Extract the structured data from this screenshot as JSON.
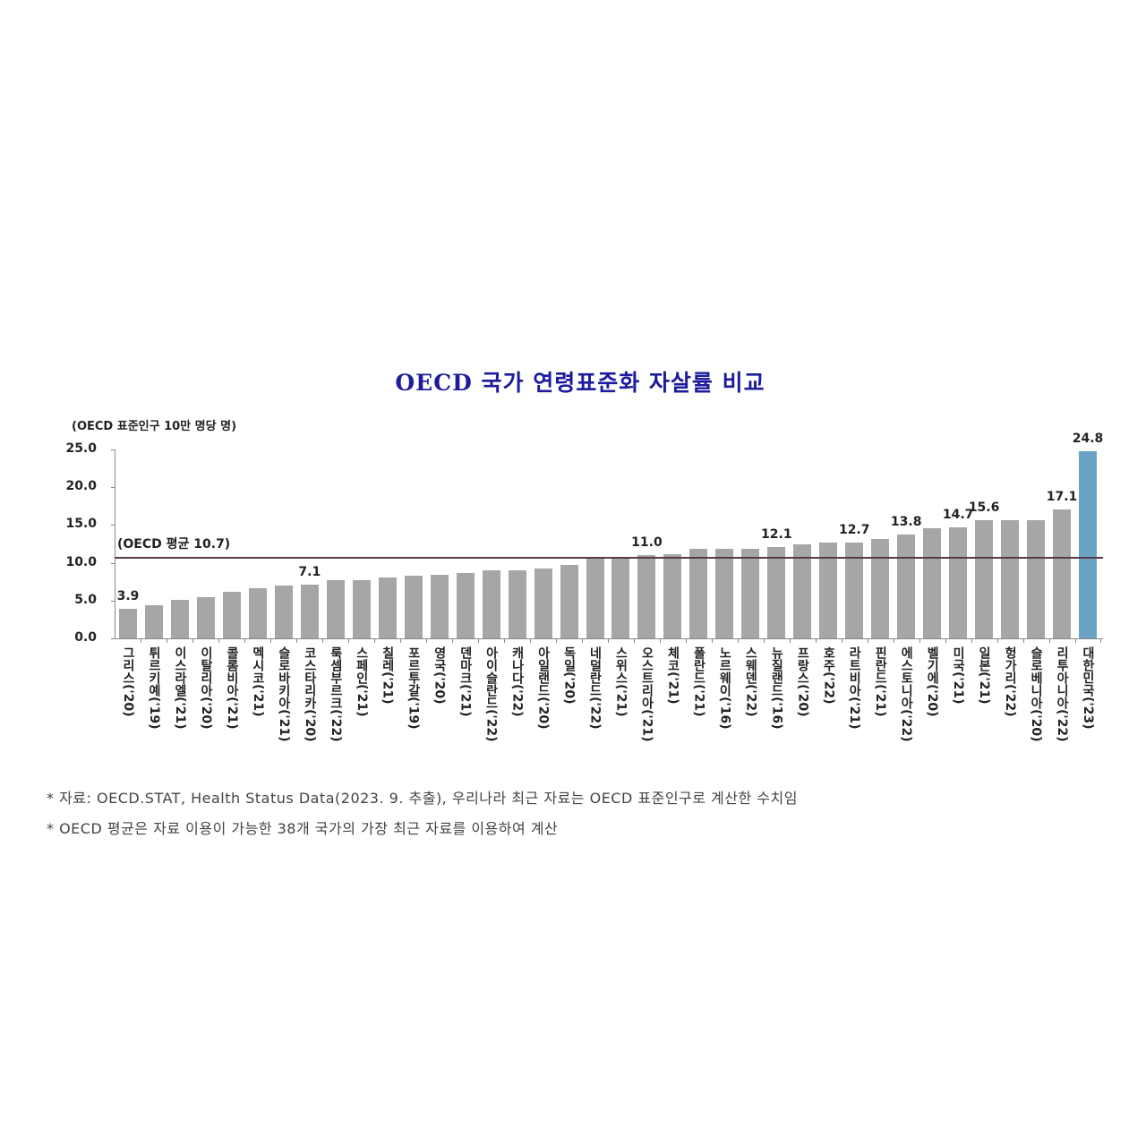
{
  "chart_data": {
    "type": "bar",
    "title": "OECD 국가 연령표준화 자살률 비교",
    "ylabel": "(OECD 표준인구 10만 명당 명)",
    "ylim": [
      0,
      25
    ],
    "yticks": [
      "0.0",
      "5.0",
      "10.0",
      "15.0",
      "20.0",
      "25.0"
    ],
    "grid": false,
    "categories": [
      "그리스('20)",
      "튀르키예('19)",
      "이스라엘('21)",
      "이탈리아('20)",
      "콜롬비아('21)",
      "멕시코('21)",
      "슬로바키아('21)",
      "코스타리카('20)",
      "룩셈부르크('22)",
      "스페인('21)",
      "칠레('21)",
      "포르투갈('19)",
      "영국('20)",
      "덴마크('21)",
      "아이슬란드('22)",
      "캐나다('22)",
      "아일랜드('20)",
      "독일('20)",
      "네덜란드('22)",
      "스위스('21)",
      "오스트리아('21)",
      "체코('21)",
      "폴란드('21)",
      "노르웨이('16)",
      "스웨덴('22)",
      "뉴질랜드('16)",
      "프랑스('20)",
      "호주('22)",
      "라트비아('21)",
      "핀란드('21)",
      "에스토니아('22)",
      "벨기에('20)",
      "미국('21)",
      "일본('21)",
      "헝가리('22)",
      "슬로베니아('20)",
      "리투아니아('22)",
      "대한민국('23)"
    ],
    "values": [
      3.9,
      4.4,
      5.1,
      5.4,
      6.2,
      6.6,
      7.0,
      7.1,
      7.7,
      7.7,
      8.1,
      8.3,
      8.4,
      8.6,
      9.0,
      9.0,
      9.3,
      9.7,
      10.5,
      10.7,
      11.0,
      11.1,
      11.8,
      11.8,
      11.8,
      12.1,
      12.5,
      12.7,
      12.7,
      13.2,
      13.8,
      14.6,
      14.7,
      15.6,
      15.6,
      15.6,
      17.1,
      24.8
    ],
    "data_labels": {
      "0": "3.9",
      "7": "7.1",
      "20": "11.0",
      "25": "12.1",
      "28": "12.7",
      "30": "13.8",
      "32": "14.7",
      "33": "15.6",
      "36": "17.1",
      "37": "24.8"
    },
    "highlight_index": 37,
    "colors": {
      "bar": "#a6a6a6",
      "highlight": "#6aa3c3",
      "average_line": "#5a3a4a",
      "title": "#1c1c9c"
    },
    "reference_line": {
      "value": 10.7,
      "label": "(OECD 평균 10.7)"
    }
  },
  "notes": [
    "* 자료: OECD.STAT, Health Status Data(2023. 9. 추출), 우리나라 최근 자료는 OECD 표준인구로 계산한 수치임",
    "* OECD 평균은 자료 이용이 가능한 38개 국가의 가장 최근 자료를 이용하여 계산"
  ]
}
